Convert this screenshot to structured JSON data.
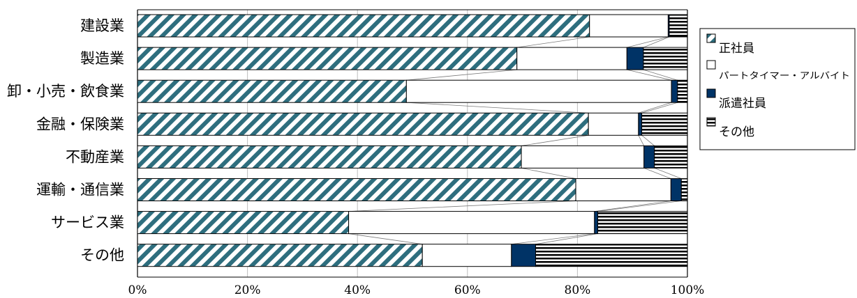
{
  "chart_data": {
    "type": "bar",
    "orientation": "horizontal",
    "stacked": "percent",
    "categories": [
      "建設業",
      "製造業",
      "卸・小売・飲食業",
      "金融・保険業",
      "不動産業",
      "運輸・通信業",
      "サービス業",
      "その他"
    ],
    "series": [
      {
        "name": "正社員",
        "values": [
          82.2,
          69.0,
          48.9,
          82.0,
          69.8,
          79.7,
          38.4,
          51.8
        ],
        "color": "#2e6e7e",
        "pattern": "diagonal-hatch"
      },
      {
        "name": "パートタイマー・アルバイト",
        "values": [
          14.3,
          20.0,
          48.2,
          9.1,
          22.3,
          17.3,
          44.7,
          16.2
        ],
        "color": "#ffffff",
        "pattern": "none"
      },
      {
        "name": "派遣社員",
        "values": [
          0.2,
          3.0,
          1.1,
          0.6,
          1.9,
          1.9,
          0.6,
          4.4
        ],
        "color": "#003366",
        "pattern": "solid"
      },
      {
        "name": "その他",
        "values": [
          3.3,
          8.0,
          1.8,
          8.3,
          6.0,
          1.1,
          16.3,
          27.6
        ],
        "color": "#000000",
        "pattern": "horizontal-stripes"
      }
    ],
    "x_ticks": [
      "0%",
      "20%",
      "40%",
      "60%",
      "80%",
      "100%"
    ],
    "xlim": [
      0,
      100
    ],
    "grid": "vertical",
    "legend_position": "right",
    "series_connector_lines": true,
    "title": "",
    "xlabel": "",
    "ylabel": ""
  }
}
